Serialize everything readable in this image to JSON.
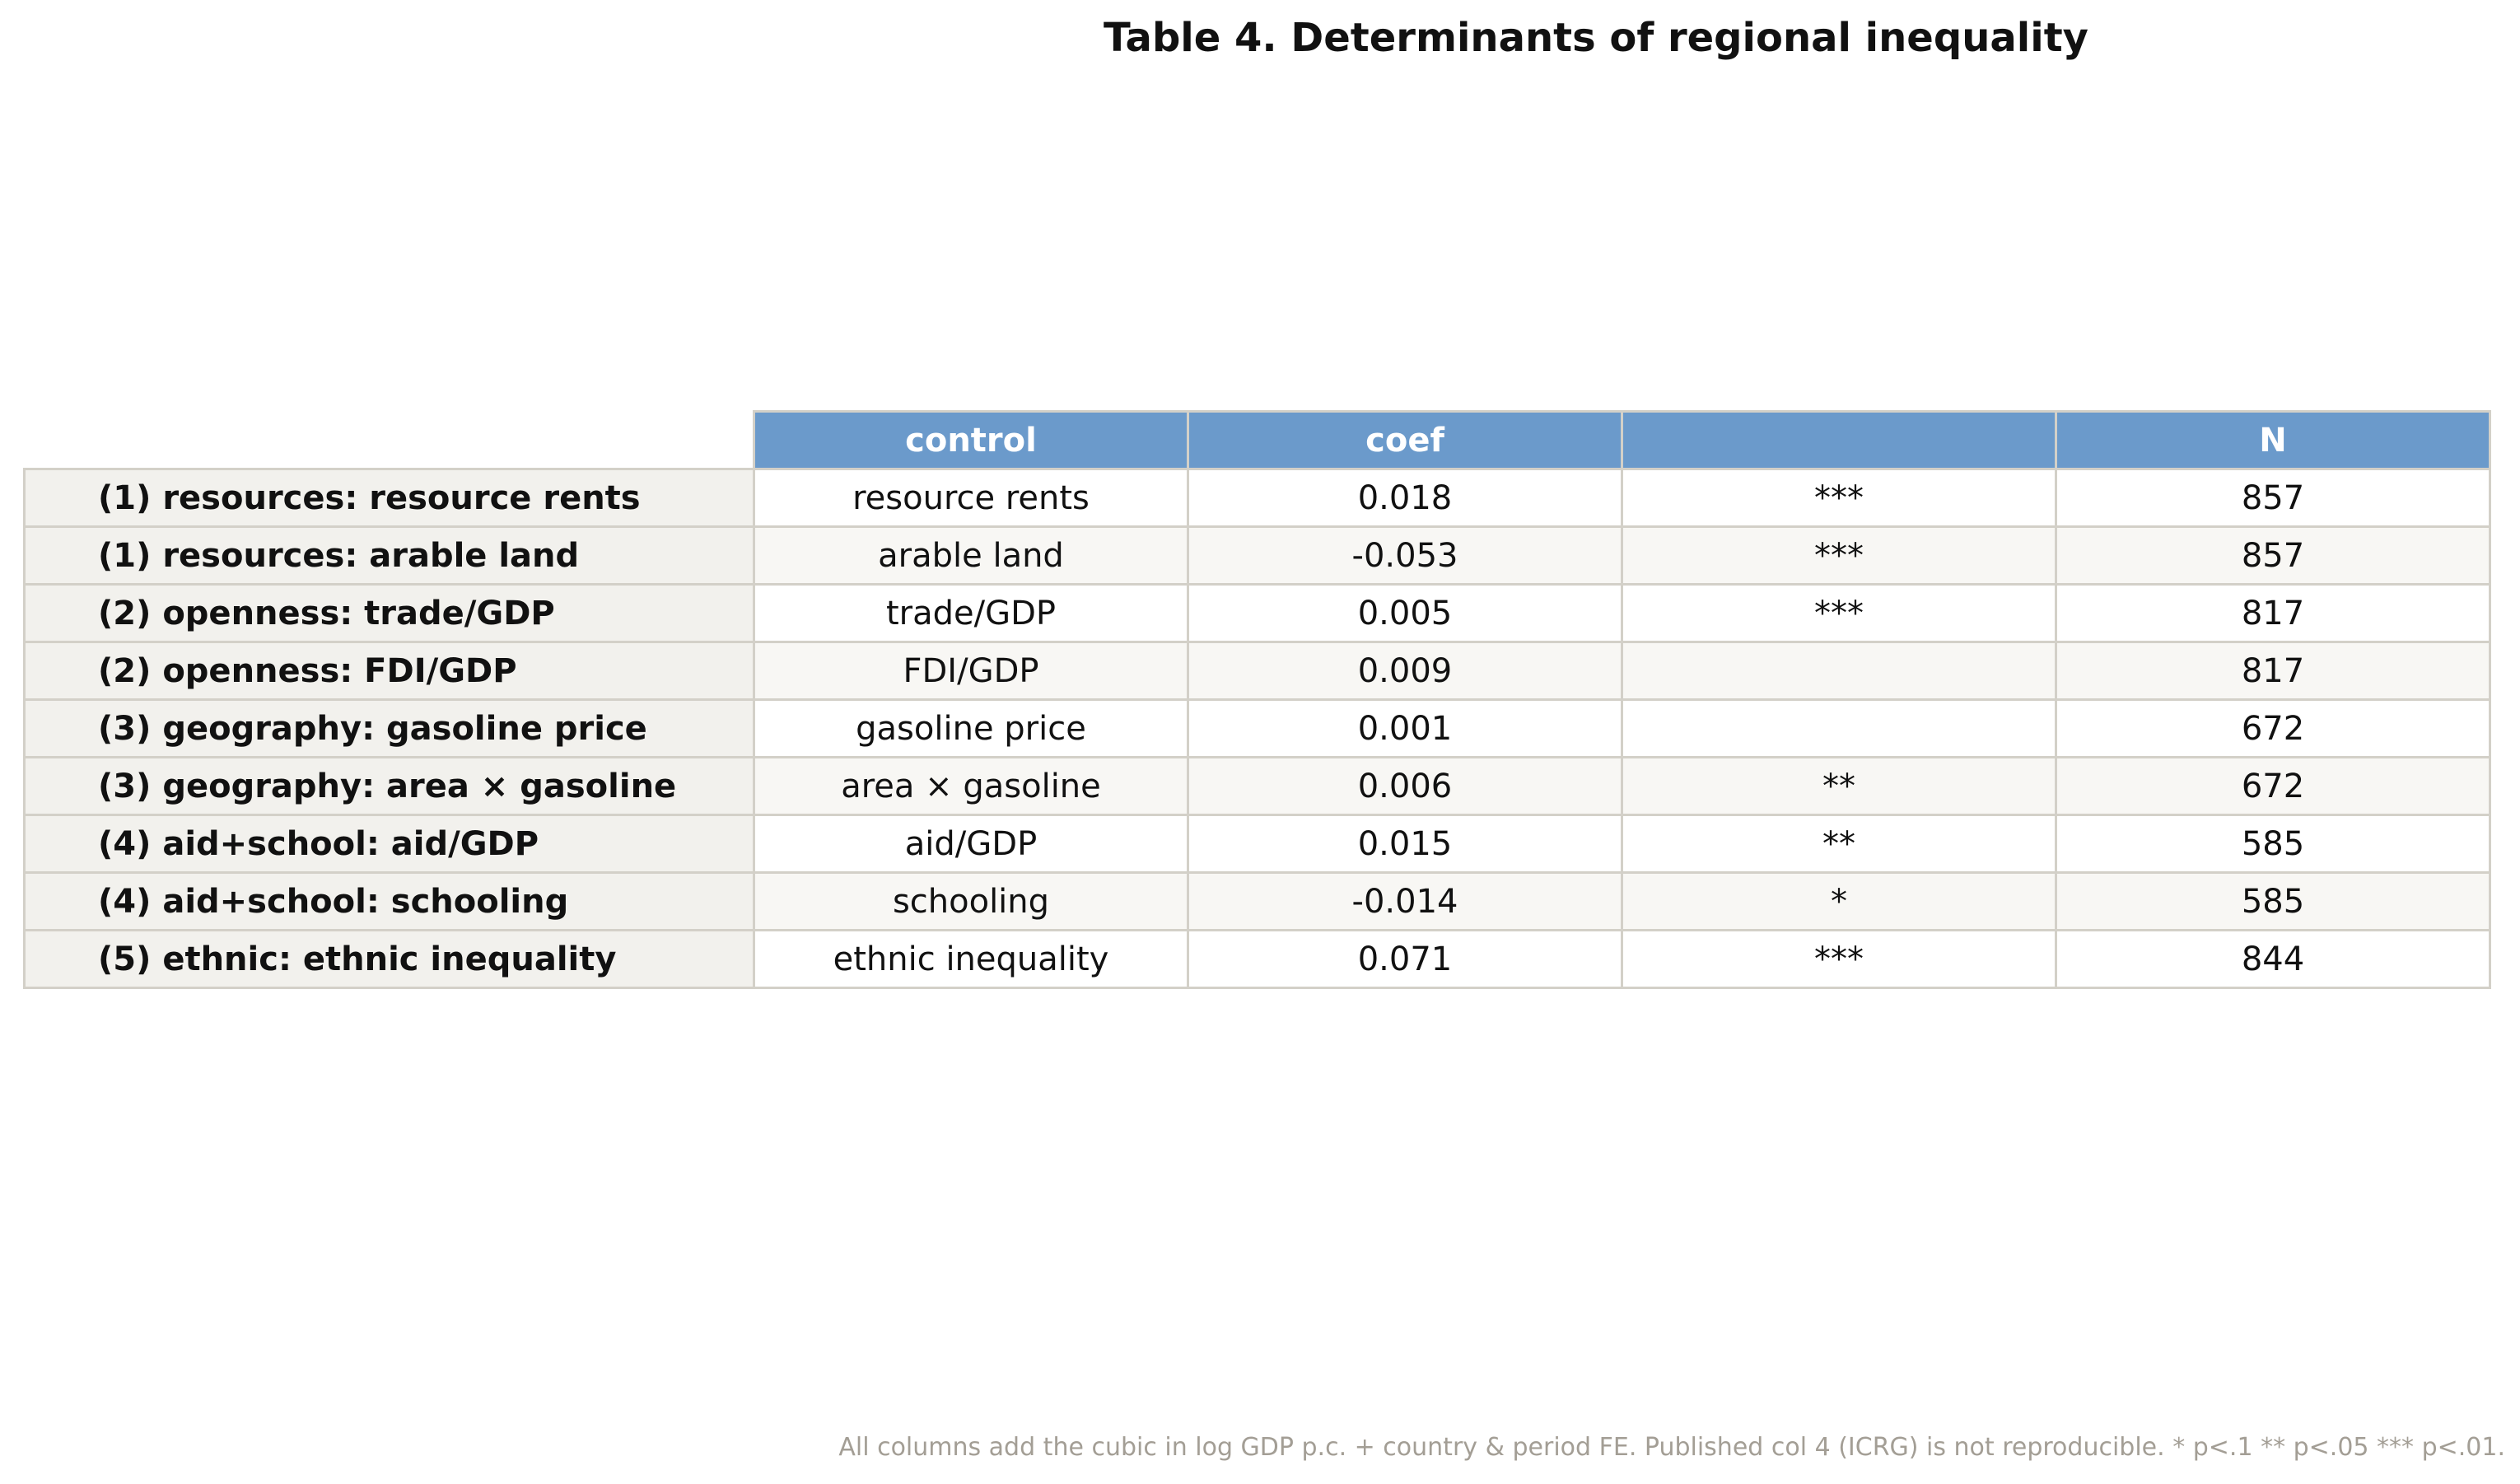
{
  "chart_data": {
    "type": "table",
    "title": "Table 4. Determinants of regional inequality",
    "columns": [
      "control",
      "coef",
      "",
      "N"
    ],
    "rows": [
      {
        "label": "(1) resources: resource rents",
        "control": "resource rents",
        "coef": "0.018",
        "sig": "***",
        "n": "857"
      },
      {
        "label": "(1) resources: arable land",
        "control": "arable land",
        "coef": "-0.053",
        "sig": "***",
        "n": "857"
      },
      {
        "label": "(2) openness: trade/GDP",
        "control": "trade/GDP",
        "coef": "0.005",
        "sig": "***",
        "n": "817"
      },
      {
        "label": "(2) openness: FDI/GDP",
        "control": "FDI/GDP",
        "coef": "0.009",
        "sig": "",
        "n": "817"
      },
      {
        "label": "(3) geography: gasoline price",
        "control": "gasoline price",
        "coef": "0.001",
        "sig": "",
        "n": "672"
      },
      {
        "label": "(3) geography: area × gasoline",
        "control": "area × gasoline",
        "coef": "0.006",
        "sig": "**",
        "n": "672"
      },
      {
        "label": "(4) aid+school: aid/GDP",
        "control": "aid/GDP",
        "coef": "0.015",
        "sig": "**",
        "n": "585"
      },
      {
        "label": "(4) aid+school: schooling",
        "control": "schooling",
        "coef": "-0.014",
        "sig": "*",
        "n": "585"
      },
      {
        "label": "(5) ethnic: ethnic inequality",
        "control": "ethnic inequality",
        "coef": "0.071",
        "sig": "***",
        "n": "844"
      }
    ],
    "note": "All columns add the cubic in log GDP p.c. + country & period FE. Published col 4 (ICRG) is not reproducible. * p<.1 ** p<.05 *** p<.01.",
    "colors": {
      "header_bg": "#6b9acb",
      "header_text": "#ffffff",
      "row_label_bg": "#f2f1ed",
      "grid": "#d3d0c8",
      "note_text": "#a39e95"
    }
  }
}
